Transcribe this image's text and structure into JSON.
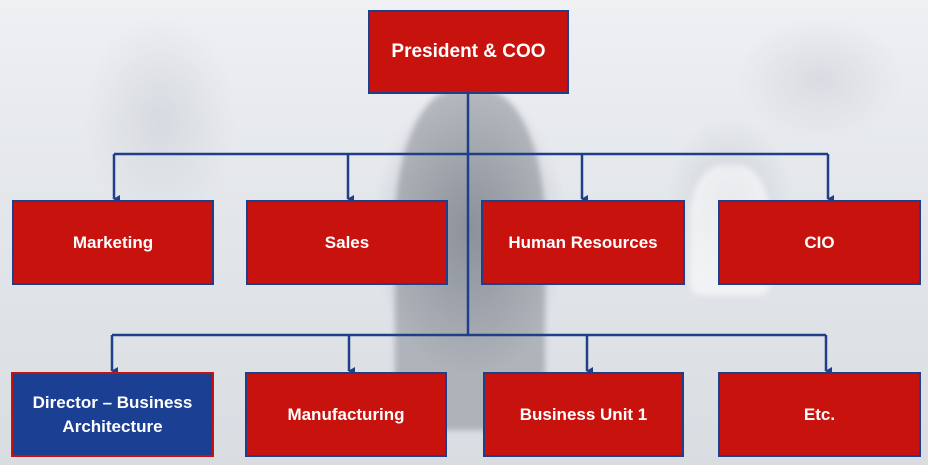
{
  "chart": {
    "top": {
      "label": "President & COO"
    },
    "row1": [
      {
        "label": "Marketing"
      },
      {
        "label": "Sales"
      },
      {
        "label": "Human Resources"
      },
      {
        "label": "CIO"
      }
    ],
    "row2": [
      {
        "label": "Director – Business Architecture",
        "highlight": true
      },
      {
        "label": "Manufacturing"
      },
      {
        "label": "Business Unit 1"
      },
      {
        "label": "Etc."
      }
    ]
  },
  "colors": {
    "box_fill": "#c8120e",
    "box_border": "#1f3f8a",
    "highlight_fill": "#1b3f93",
    "highlight_border": "#c8120e",
    "connector": "#1f3f8a"
  }
}
